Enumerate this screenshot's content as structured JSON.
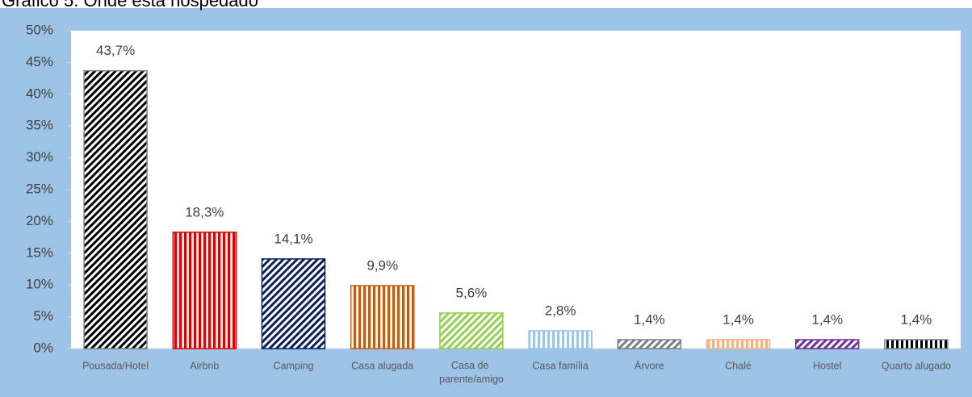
{
  "chart_data": {
    "type": "bar",
    "title": "Gráfico 5. Onde está hospedado",
    "categories": [
      "Pousada/Hotel",
      "Airbnb",
      "Camping",
      "Casa alugada",
      "Casa de parente/amigo",
      "Casa família",
      "Árvore",
      "Chalé",
      "Hostel",
      "Quarto alugado"
    ],
    "values": [
      43.7,
      18.3,
      14.1,
      9.9,
      5.6,
      2.8,
      1.4,
      1.4,
      1.4,
      1.4
    ],
    "value_labels": [
      "43,7%",
      "18,3%",
      "14,1%",
      "9,9%",
      "5,6%",
      "2,8%",
      "1,4%",
      "1,4%",
      "1,4%",
      "1,4%"
    ],
    "colors": [
      "#000000",
      "#e00000",
      "#0a1f5c",
      "#c55a11",
      "#92d050",
      "#9dc3e6",
      "#7f7f7f",
      "#f4b183",
      "#7030a0",
      "#000000"
    ],
    "ylim": [
      0,
      50
    ],
    "yticks": [
      {
        "value": 0,
        "label": "0%"
      },
      {
        "value": 5,
        "label": "5%"
      },
      {
        "value": 10,
        "label": "10%"
      },
      {
        "value": 15,
        "label": "15%"
      },
      {
        "value": 20,
        "label": "20%"
      },
      {
        "value": 25,
        "label": "25%"
      },
      {
        "value": 30,
        "label": "30%"
      },
      {
        "value": 35,
        "label": "35%"
      },
      {
        "value": 40,
        "label": "40%"
      },
      {
        "value": 45,
        "label": "45%"
      },
      {
        "value": 50,
        "label": "50%"
      }
    ]
  }
}
